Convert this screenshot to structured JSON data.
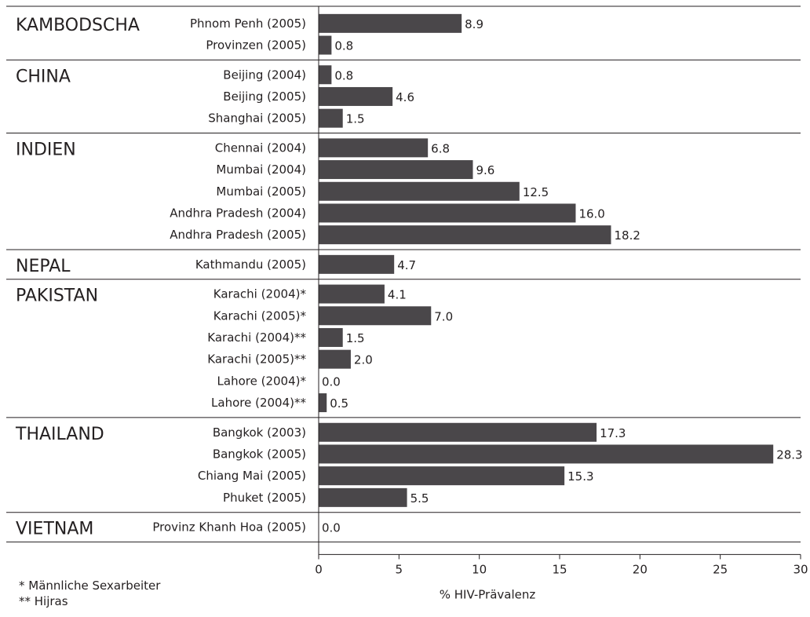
{
  "chart_data": {
    "type": "bar",
    "orientation": "horizontal",
    "xlabel": "% HIV-Prävalenz",
    "xlim": [
      0,
      30
    ],
    "xticks": [
      0,
      5,
      10,
      15,
      20,
      25,
      30
    ],
    "value_labels": true,
    "bar_color": "#4a474a",
    "groups": [
      {
        "name": "KAMBODSCHA",
        "bars": [
          {
            "label": "Phnom Penh (2005)",
            "value": 8.9,
            "text": "8.9"
          },
          {
            "label": "Provinzen (2005)",
            "value": 0.8,
            "text": "0.8"
          }
        ]
      },
      {
        "name": "CHINA",
        "bars": [
          {
            "label": "Beijing (2004)",
            "value": 0.8,
            "text": "0.8"
          },
          {
            "label": "Beijing (2005)",
            "value": 4.6,
            "text": "4.6"
          },
          {
            "label": "Shanghai (2005)",
            "value": 1.5,
            "text": "1.5"
          }
        ]
      },
      {
        "name": "INDIEN",
        "bars": [
          {
            "label": "Chennai (2004)",
            "value": 6.8,
            "text": "6.8"
          },
          {
            "label": "Mumbai (2004)",
            "value": 9.6,
            "text": "9.6"
          },
          {
            "label": "Mumbai (2005)",
            "value": 12.5,
            "text": "12.5"
          },
          {
            "label": "Andhra Pradesh (2004)",
            "value": 16.0,
            "text": "16.0"
          },
          {
            "label": "Andhra Pradesh (2005)",
            "value": 18.2,
            "text": "18.2"
          }
        ]
      },
      {
        "name": "NEPAL",
        "bars": [
          {
            "label": "Kathmandu (2005)",
            "value": 4.7,
            "text": "4.7"
          }
        ]
      },
      {
        "name": "PAKISTAN",
        "bars": [
          {
            "label": "Karachi (2004)*",
            "value": 4.1,
            "text": "4.1"
          },
          {
            "label": "Karachi (2005)*",
            "value": 7.0,
            "text": "7.0"
          },
          {
            "label": "Karachi (2004)**",
            "value": 1.5,
            "text": "1.5"
          },
          {
            "label": "Karachi (2005)**",
            "value": 2.0,
            "text": "2.0"
          },
          {
            "label": "Lahore (2004)*",
            "value": 0.0,
            "text": "0.0"
          },
          {
            "label": "Lahore (2004)**",
            "value": 0.5,
            "text": "0.5"
          }
        ]
      },
      {
        "name": "THAILAND",
        "bars": [
          {
            "label": "Bangkok (2003)",
            "value": 17.3,
            "text": "17.3"
          },
          {
            "label": "Bangkok (2005)",
            "value": 28.3,
            "text": "28.3"
          },
          {
            "label": "Chiang Mai (2005)",
            "value": 15.3,
            "text": "15.3"
          },
          {
            "label": "Phuket (2005)",
            "value": 5.5,
            "text": "5.5"
          }
        ]
      },
      {
        "name": "VIETNAM",
        "bars": [
          {
            "label": "Provinz Khanh Hoa (2005)",
            "value": 0.0,
            "text": "0.0"
          }
        ]
      }
    ]
  },
  "footnotes": {
    "single_star": "*  Männliche Sexarbeiter",
    "double_star": "** Hijras"
  }
}
